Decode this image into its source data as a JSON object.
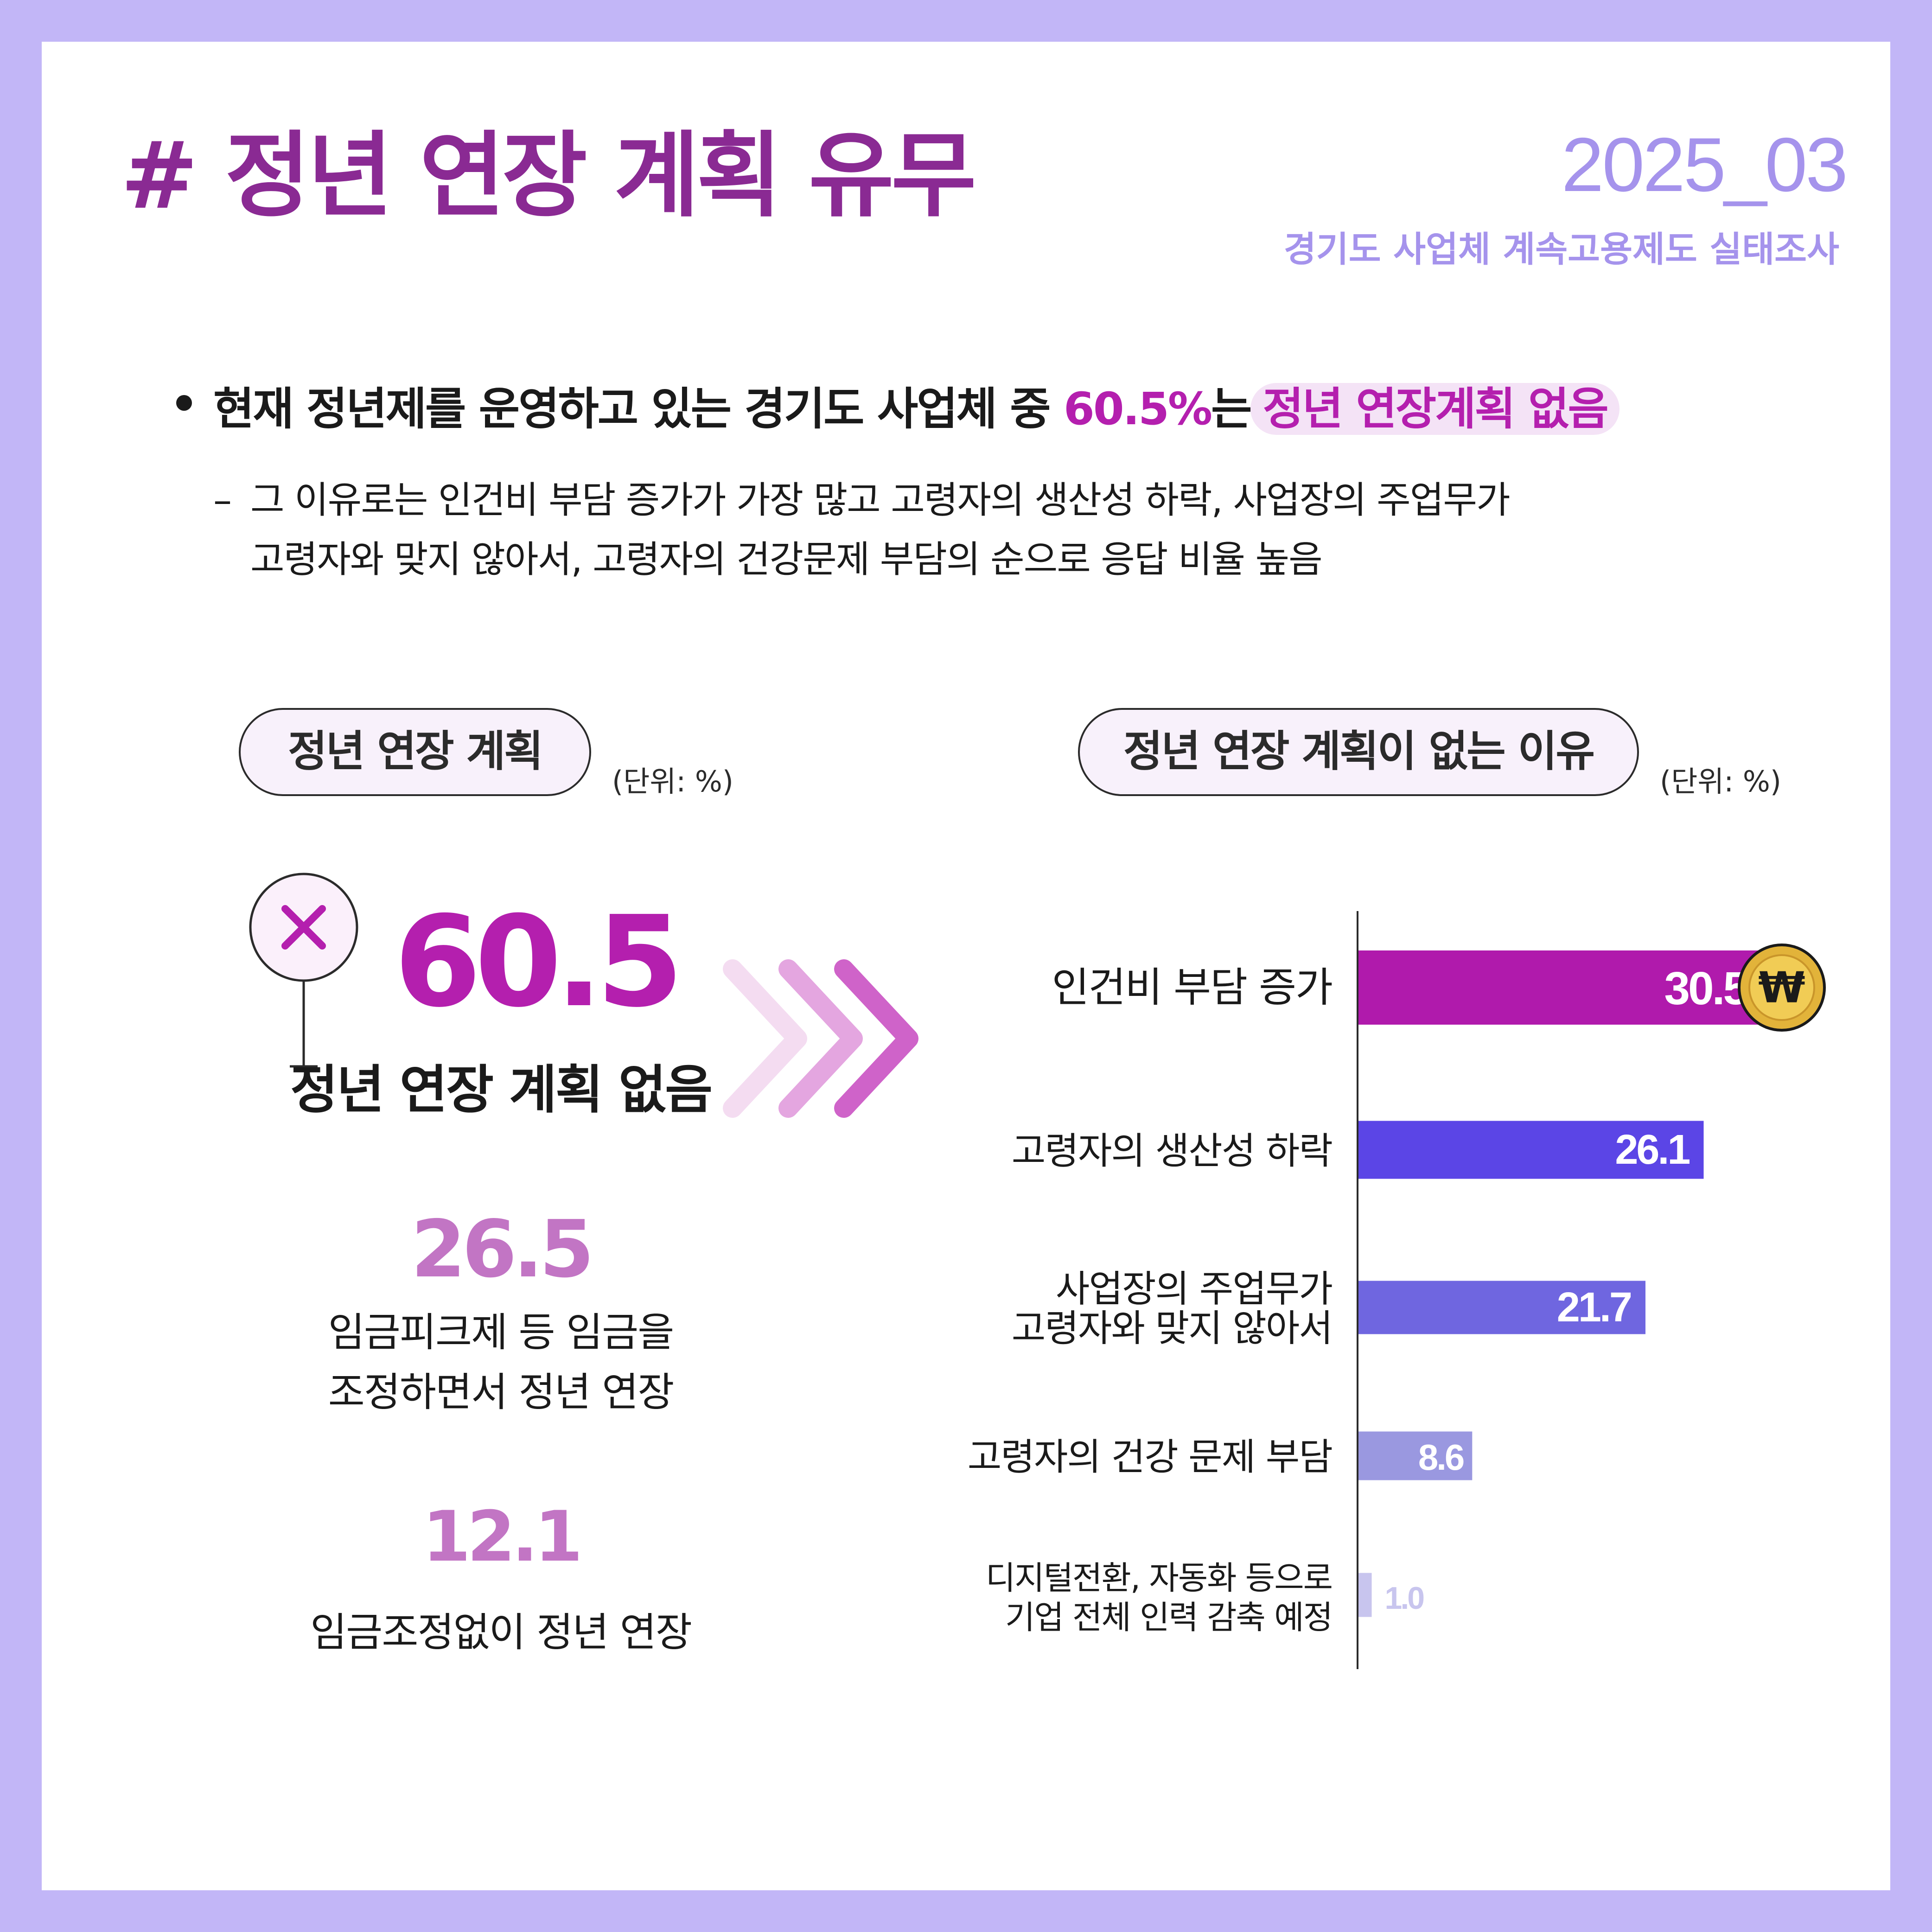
{
  "header": {
    "title": "# 정년 연장 계획 유무",
    "date": "2025_03",
    "source": "경기도 사업체 계속고용제도 실태조사"
  },
  "summary": {
    "main_prefix": "현재 정년제를 운영하고 있는 경기도 사업체 중 ",
    "main_pct": "60.5%",
    "main_mid": "는",
    "main_highlight": "정년 연장계획 없음",
    "detail_line1": "그 이유로는 인건비 부담 증가가 가장 많고 고령자의 생산성 하락, 사업장의 주업무가",
    "detail_line2": "고령자와 맞지 않아서, 고령자의 건강문제 부담의 순으로 응답 비율 높음"
  },
  "left_panel": {
    "title": "정년 연장 계획",
    "unit": "(단위: %)",
    "icon": "x-mark-pin-icon",
    "items": [
      {
        "value": "60.5",
        "label": "정년 연장 계획 없음"
      },
      {
        "value": "26.5",
        "label_line1": "임금피크제 등 임금을",
        "label_line2": "조정하면서 정년 연장"
      },
      {
        "value": "12.1",
        "label": "임금조정없이 정년 연장"
      }
    ]
  },
  "right_panel": {
    "title": "정년 연장 계획이 없는 이유",
    "unit": "(단위: %)"
  },
  "chart_data": {
    "type": "bar",
    "orientation": "horizontal",
    "categories": [
      [
        "인건비 부담 증가"
      ],
      [
        "고령자의 생산성 하락"
      ],
      [
        "사업장의 주업무가",
        "고령자와 맞지 않아서"
      ],
      [
        "고령자의 건강 문제 부담"
      ],
      [
        "디지털전환, 자동화 등으로",
        "기업 전체 인력 감축 예정"
      ]
    ],
    "values": [
      30.5,
      26.1,
      21.7,
      8.6,
      1.0
    ],
    "value_labels": [
      "30.5",
      "26.1",
      "21.7",
      "8.6",
      "1.0"
    ],
    "colors": [
      "#b01aac",
      "#5b45e6",
      "#6f66e0",
      "#9a98e0",
      "#c8c5ee"
    ],
    "xlim": [
      0,
      35
    ],
    "accent_icon": "won-coin-icon",
    "coin_symbol": "₩"
  },
  "colors": {
    "background_frame": "#c2b6f7",
    "accent_magenta": "#b41fae",
    "title_purple": "#8a2a93",
    "lavender_text": "#a593ec",
    "soft_pink": "#c275c4"
  }
}
